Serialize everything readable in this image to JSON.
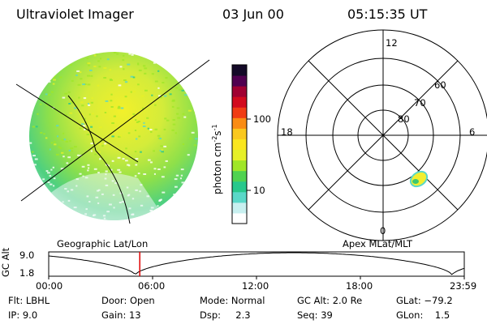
{
  "header": {
    "instrument": "Ultraviolet Imager",
    "date": "03 Jun 00",
    "time": "05:15:35 UT"
  },
  "colorbar": {
    "label_main": "photon cm",
    "label_sup1": "-2",
    "label_mid": "s",
    "label_sup2": "-1",
    "ticks": [
      "100",
      "10"
    ],
    "scale": "log",
    "colors": [
      "#ffffff",
      "#c8f0f0",
      "#5ad8c8",
      "#28c88c",
      "#50d250",
      "#a0e628",
      "#e6f028",
      "#fae61e",
      "#fac81e",
      "#fa8c14",
      "#f03c14",
      "#d20a1e",
      "#a00032",
      "#500050",
      "#140a28"
    ]
  },
  "polar": {
    "mlt_labels": {
      "top": "12",
      "left": "18",
      "right": "6",
      "bottom": "0"
    },
    "lat_labels": [
      "60",
      "70",
      "80"
    ]
  },
  "timeline": {
    "left_title": "Geographic Lat/Lon",
    "right_title": "Apex MLat/MLT",
    "axis_title": "GC Alt",
    "y_ticks": [
      "9.0",
      "1.8"
    ],
    "x_ticks": [
      "00:00",
      "06:00",
      "12:00",
      "18:00",
      "23:59"
    ],
    "marker_color": "#e00000"
  },
  "status": {
    "flt": "Flt: LBHL",
    "ip": "IP:  9.0",
    "door": "Door: Open",
    "gain": "Gain: 13",
    "mode": "Mode: Normal",
    "dsp": "Dsp:     2.3",
    "gcalt": "GC Alt: 2.0 Re",
    "seq": "Seq: 39",
    "glat": "GLat: −79.2",
    "glon": "GLon:    1.5"
  }
}
